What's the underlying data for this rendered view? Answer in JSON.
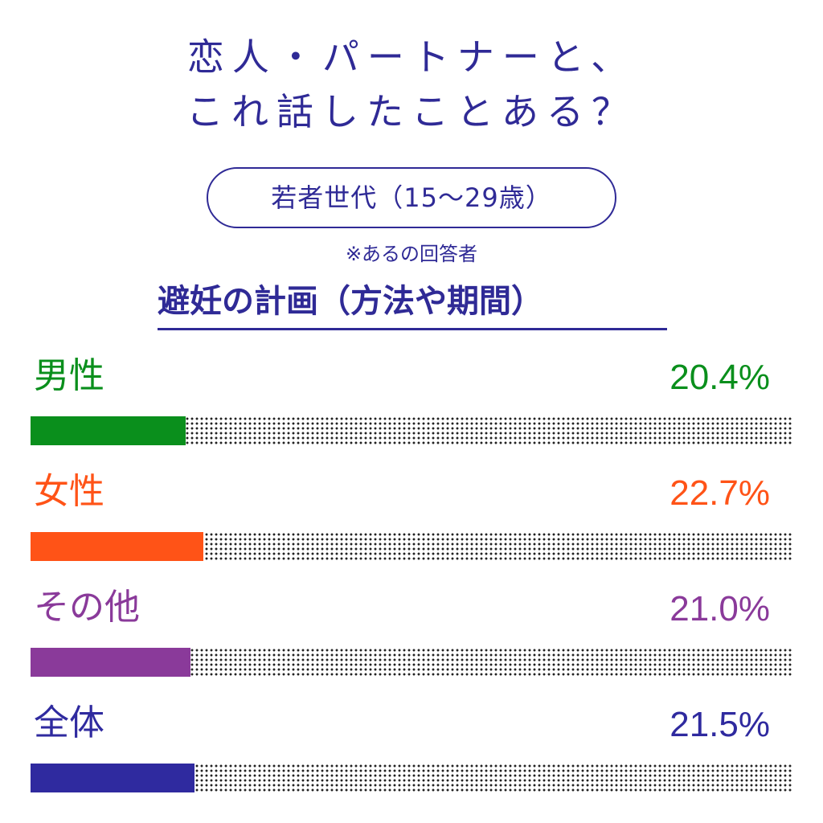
{
  "header": {
    "title_line1": "恋人・パートナーと、",
    "title_line2": "これ話したことある？",
    "group": "若者世代（15～29歳）",
    "note": "※あるの回答者",
    "topic": "避妊の計画（方法や期間）"
  },
  "chart_data": {
    "type": "bar",
    "orientation": "horizontal",
    "title": "避妊の計画（方法や期間）",
    "categories": [
      "男性",
      "女性",
      "その他",
      "全体"
    ],
    "values": [
      20.4,
      22.7,
      21.0,
      21.5
    ],
    "value_labels": [
      "20.4%",
      "22.7%",
      "21.0%",
      "21.5%"
    ],
    "colors": [
      "#0a8f1c",
      "#ff5317",
      "#8a3a9a",
      "#2f2a9f"
    ],
    "xlim": [
      0,
      100
    ],
    "grid": false,
    "legend": "none"
  }
}
